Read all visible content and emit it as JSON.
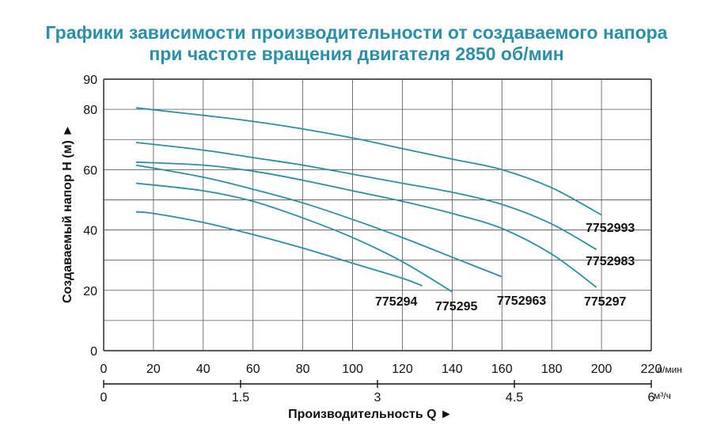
{
  "title_line1": "Графики зависимости производительности от создаваемого напора",
  "title_line2": "при частоте вращения двигателя 2850 об/мин",
  "chart_data": {
    "type": "line",
    "ylabel": "Создаваемый напор H (м) ►",
    "xlabel": "Производительность Q ►",
    "ylim": [
      0,
      90
    ],
    "y_ticks": [
      0,
      20,
      40,
      60,
      80,
      90
    ],
    "xlim": [
      0,
      220
    ],
    "x_ticks": [
      0,
      20,
      40,
      60,
      80,
      100,
      120,
      140,
      160,
      180,
      200,
      220
    ],
    "x_unit": "л/мин",
    "x2lim": [
      0,
      6
    ],
    "x2_ticks": [
      "0",
      "1.5",
      "3",
      "4.5",
      "6"
    ],
    "x2_unit": "м³/ч",
    "grid": true,
    "line_color": "#2a8fa8",
    "series": [
      {
        "name": "7752993",
        "x": [
          13,
          40,
          60,
          80,
          100,
          120,
          140,
          160,
          180,
          200
        ],
        "y": [
          80.5,
          78,
          76,
          73.5,
          70.5,
          67,
          63.5,
          60,
          54,
          45
        ]
      },
      {
        "name": "7752983",
        "x": [
          13,
          40,
          60,
          80,
          100,
          120,
          140,
          160,
          180,
          198
        ],
        "y": [
          69,
          66.5,
          64,
          61.5,
          58.5,
          55.5,
          52.5,
          48.5,
          42,
          33.5
        ]
      },
      {
        "name": "775297",
        "x": [
          13,
          40,
          60,
          80,
          100,
          120,
          140,
          160,
          180,
          198
        ],
        "y": [
          62.5,
          61.5,
          59.5,
          56.5,
          53,
          49.5,
          45.5,
          40.5,
          32,
          21
        ]
      },
      {
        "name": "7752963",
        "x": [
          13,
          40,
          60,
          80,
          100,
          120,
          140,
          160
        ],
        "y": [
          61.5,
          57.5,
          53.5,
          49,
          43.5,
          37.5,
          31,
          24.5
        ]
      },
      {
        "name": "775295",
        "x": [
          13,
          40,
          60,
          80,
          100,
          120,
          140
        ],
        "y": [
          55.5,
          53,
          49.5,
          44,
          37.5,
          29.5,
          19.5
        ]
      },
      {
        "name": "775294",
        "x": [
          13,
          20,
          40,
          60,
          80,
          100,
          120,
          128
        ],
        "y": [
          46,
          45.5,
          42.5,
          38.5,
          34,
          29,
          24,
          21.5
        ]
      }
    ]
  }
}
